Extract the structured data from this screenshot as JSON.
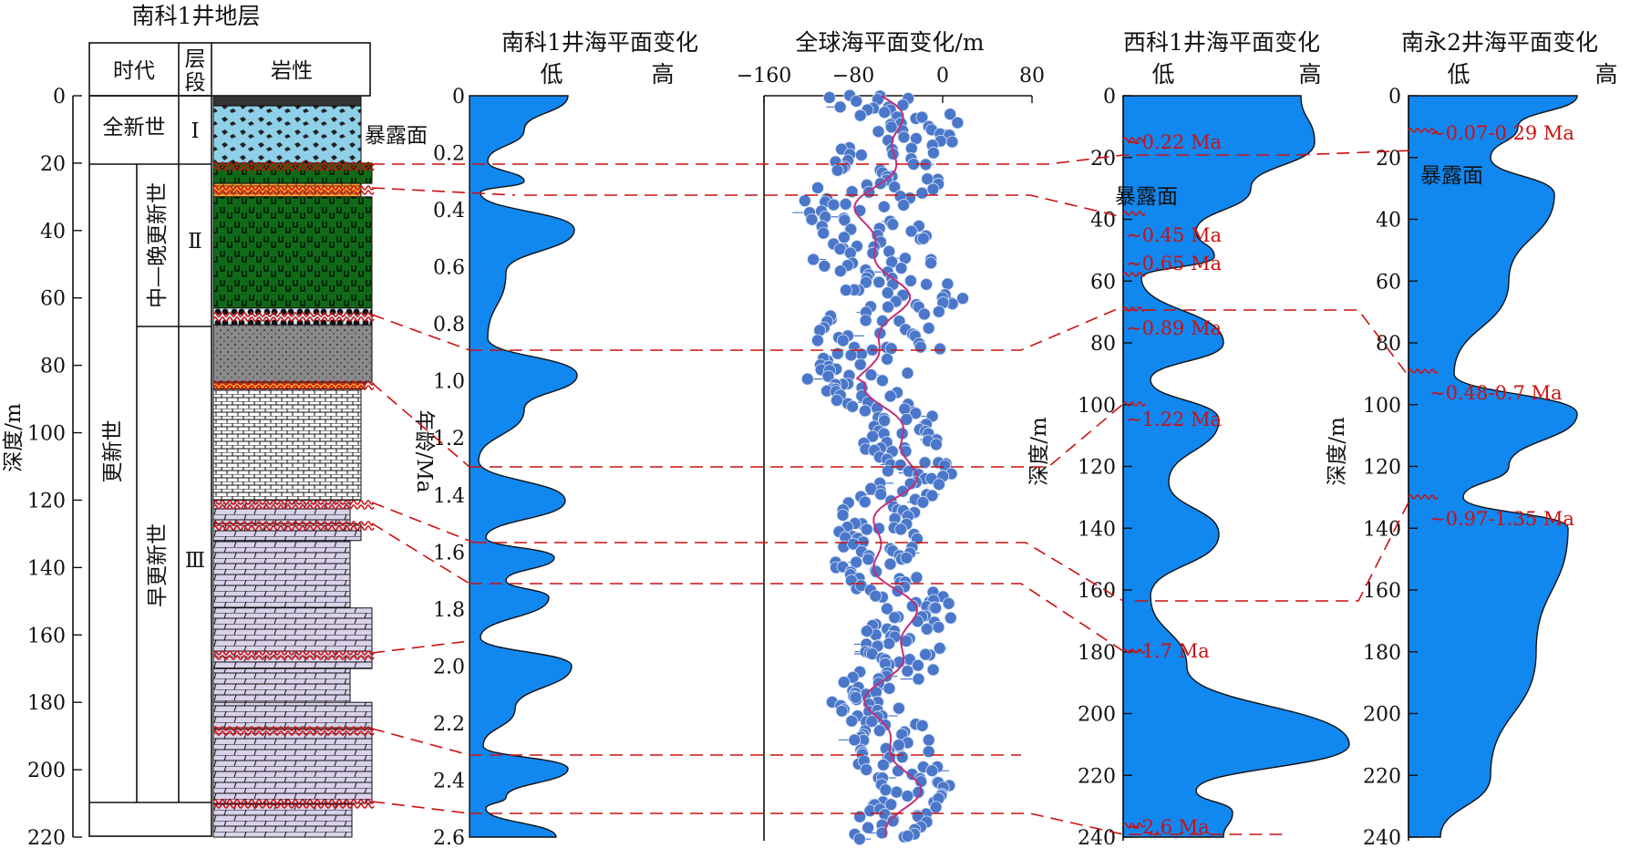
{
  "column": {
    "title": "南科1井地层",
    "header_age": "时代",
    "header_unit": "层段",
    "header_lith": "岩性",
    "ylabel": "深度/m",
    "ticks": [
      0,
      20,
      40,
      60,
      80,
      100,
      120,
      140,
      160,
      180,
      200,
      220
    ],
    "holocene": "全新世",
    "pleistocene": "更新世",
    "mid_late": "中—晚更新世",
    "early": "早更新世",
    "unit1": "Ⅰ",
    "unit2": "Ⅱ",
    "unit3": "Ⅲ",
    "exposure": "暴露面"
  },
  "nanke": {
    "title": "南科1井海平面变化",
    "low": "低",
    "high": "高",
    "ylabel": "年龄/Ma",
    "ticks": [
      "0",
      "0.2",
      "0.4",
      "0.6",
      "0.8",
      "1.0",
      "1.2",
      "1.4",
      "1.6",
      "1.8",
      "2.0",
      "2.2",
      "2.4",
      "2.6"
    ]
  },
  "global": {
    "title": "全球海平面变化/m",
    "ticks": [
      "−160",
      "−80",
      "0",
      "80"
    ]
  },
  "xike": {
    "title": "西科1井海平面变化",
    "low": "低",
    "high": "高",
    "ylabel": "深度/m",
    "ticks": [
      0,
      20,
      40,
      60,
      80,
      100,
      120,
      140,
      160,
      180,
      200,
      220,
      240
    ],
    "exposure": "暴露面",
    "ages": [
      "~0.22 Ma",
      "~0.45 Ma",
      "~0.65 Ma",
      "~0.89 Ma",
      "~1.22 Ma",
      "~1.7 Ma",
      "~2.6 Ma"
    ]
  },
  "nanyong": {
    "title": "南永2井海平面变化",
    "low": "低",
    "high": "高",
    "ylabel": "深度/m",
    "ticks": [
      0,
      20,
      40,
      60,
      80,
      100,
      120,
      140,
      160,
      180,
      200,
      220,
      240
    ],
    "exposure": "暴露面",
    "ages": [
      "~0.07-0.29 Ma",
      "~0.48-0.7 Ma",
      "~0.97-1.35 Ma"
    ]
  },
  "colors": {
    "water": "#1187f0",
    "dots": "#4a77c9",
    "trend": "#c0307a",
    "marks": "#cc1111"
  }
}
